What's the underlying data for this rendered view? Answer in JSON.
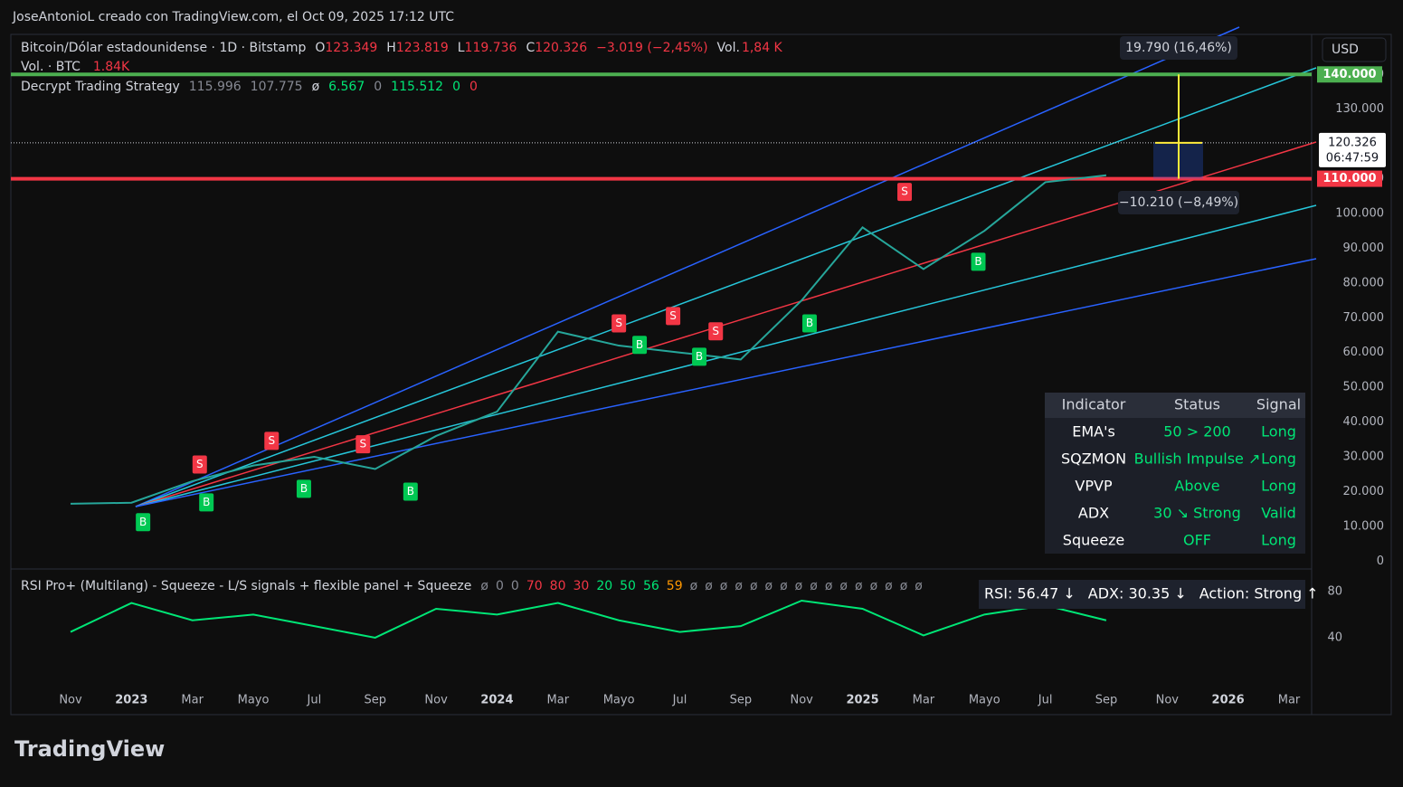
{
  "header": {
    "credit": "JoseAntonioL creado con TradingView.com, el Oct 09, 2025 17:12 UTC",
    "brand": "TradingView",
    "currency": "USD"
  },
  "chart_data": [
    {
      "type": "line",
      "title": "Bitcoin/Dólar estadounidense · 1D · Bitstamp",
      "ohlc": [
        {
          "label": "O",
          "text": "123.349"
        },
        {
          "label": "H",
          "text": "123.819"
        },
        {
          "label": "L",
          "text": "119.736"
        },
        {
          "label": "C",
          "text": "120.326"
        }
      ],
      "change": "−3.019 (−2,45%)",
      "volume": {
        "label": "Vol.",
        "text": "1,84 K"
      },
      "volume_line": {
        "label": "Vol. · BTC",
        "text": "1.84K"
      },
      "indicator_legend": {
        "name": "Decrypt Trading Strategy",
        "values": [
          "115.996",
          "107.775",
          "ø",
          "6.567",
          "0",
          "115.512",
          "0",
          "0"
        ],
        "colors": [
          "#868993",
          "#868993",
          "#d1d4dc",
          "#00e676",
          "#868993",
          "#00e676",
          "#00e676",
          "#f23645"
        ]
      },
      "categories": [
        "Nov",
        "2023",
        "Mar",
        "Mayo",
        "Jul",
        "Sep",
        "Nov",
        "2024",
        "Mar",
        "Mayo",
        "Jul",
        "Sep",
        "Nov",
        "2025",
        "Mar",
        "Mayo",
        "Jul",
        "Sep",
        "Nov",
        "2026",
        "Mar"
      ],
      "series": [
        {
          "color": "#26a69a",
          "values": [
            16500,
            16800,
            23000,
            27500,
            30000,
            26500,
            36000,
            43000,
            66000,
            62000,
            60000,
            58000,
            75000,
            96000,
            84000,
            95000,
            109000,
            111000,
            null,
            null,
            null
          ]
        }
      ],
      "ylim": [
        -2000,
        151000
      ],
      "yticks": [
        0,
        {
          "value": 10000,
          "label": "10.000"
        },
        {
          "value": 20000,
          "label": "20.000"
        },
        {
          "value": 30000,
          "label": "30.000"
        },
        {
          "value": 40000,
          "label": "40.000"
        },
        {
          "value": 50000,
          "label": "50.000"
        },
        {
          "value": 60000,
          "label": "60.000"
        },
        {
          "value": 70000,
          "label": "70.000"
        },
        {
          "value": 80000,
          "label": "80.000"
        },
        {
          "value": 90000,
          "label": "90.000"
        },
        {
          "value": 100000,
          "label": "100.000"
        },
        {
          "value": 110000,
          "label": "110.000"
        },
        {
          "value": 120000,
          "label": "120.000"
        },
        {
          "value": 130000,
          "label": "130.000"
        },
        {
          "value": 140000,
          "label": "140.000"
        }
      ],
      "levels": [
        {
          "value": 140000,
          "label": "140.000",
          "color": "#4caf50"
        },
        {
          "value": 110000,
          "label": "110.000",
          "color": "#f23645"
        }
      ],
      "current": {
        "value": 120326,
        "label": "120.326",
        "countdown": "06:47:59"
      },
      "measure": {
        "up": "19.790 (16,46%)",
        "down": "−10.210 (−8,49%)"
      },
      "signals": [
        {
          "label": "S",
          "x": 2.12,
          "price": 27800
        },
        {
          "label": "S",
          "x": 3.3,
          "price": 34600
        },
        {
          "label": "S",
          "x": 4.8,
          "price": 33600
        },
        {
          "label": "S",
          "x": 9.0,
          "price": 68400
        },
        {
          "label": "S",
          "x": 9.89,
          "price": 70500
        },
        {
          "label": "S",
          "x": 10.59,
          "price": 66100
        },
        {
          "label": "S",
          "x": 13.69,
          "price": 106200
        },
        {
          "label": "B",
          "x": 1.19,
          "price": 11200
        },
        {
          "label": "B",
          "x": 2.23,
          "price": 16900
        },
        {
          "label": "B",
          "x": 3.83,
          "price": 20800
        },
        {
          "label": "B",
          "x": 5.58,
          "price": 20000
        },
        {
          "label": "B",
          "x": 9.34,
          "price": 62200
        },
        {
          "label": "B",
          "x": 10.32,
          "price": 58800
        },
        {
          "label": "B",
          "x": 12.13,
          "price": 68400
        },
        {
          "label": "B",
          "x": 14.9,
          "price": 86100
        }
      ],
      "table": {
        "headers": [
          "Indicator",
          "Status",
          "Signal"
        ],
        "rows": [
          [
            "EMA's",
            "50 > 200",
            "Long"
          ],
          [
            "SQZMON",
            "Bullish Impulse ↗",
            "Long"
          ],
          [
            "VPVP",
            "Above",
            "Long"
          ],
          [
            "ADX",
            "30 ↘ Strong",
            "Valid"
          ],
          [
            "Squeeze",
            "OFF",
            "Long"
          ]
        ]
      }
    },
    {
      "type": "line",
      "title": "RSI Pro+ (Multilang) - Squeeze - L/S signals + flexible panel + Squeeze",
      "params": [
        "ø",
        "0",
        "0",
        "70",
        "80",
        "30",
        "20",
        "50",
        "56",
        "59",
        "ø",
        "ø",
        "ø",
        "ø",
        "ø",
        "ø",
        "ø",
        "ø",
        "ø",
        "ø",
        "ø",
        "ø",
        "ø",
        "ø",
        "ø",
        "ø"
      ],
      "param_colors": [
        "#868993",
        "#868993",
        "#868993",
        "#f23645",
        "#f23645",
        "#f23645",
        "#00e676",
        "#00e676",
        "#00e676",
        "#ff9800",
        "#868993",
        "#868993",
        "#868993",
        "#868993",
        "#868993",
        "#868993",
        "#868993",
        "#868993",
        "#868993",
        "#868993",
        "#868993",
        "#868993",
        "#868993",
        "#868993",
        "#868993",
        "#868993"
      ],
      "status": [
        "RSI: 56.47 ↓",
        "ADX: 30.35 ↓",
        "Action: Strong ↑"
      ],
      "series": [
        {
          "color": "#00e676",
          "values": [
            45,
            70,
            55,
            60,
            50,
            40,
            65,
            60,
            70,
            55,
            45,
            50,
            72,
            65,
            42,
            60,
            68,
            55,
            null,
            null,
            null
          ]
        }
      ],
      "ylim": [
        -3,
        97
      ],
      "yticks": [
        40,
        80
      ]
    }
  ]
}
